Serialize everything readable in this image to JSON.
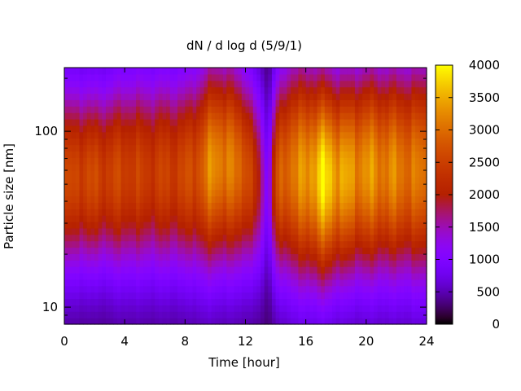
{
  "chart_data": {
    "type": "heatmap",
    "title": "dN / d log d (5/9/1)",
    "xlabel": "Time [hour]",
    "ylabel": "Particle size [nm]",
    "xlim": [
      0,
      24
    ],
    "xticks": [
      0,
      4,
      8,
      12,
      16,
      20,
      24
    ],
    "y_scale": "log",
    "ylim": [
      8,
      230
    ],
    "yticks": [
      10,
      100
    ],
    "colorbar": {
      "range": [
        0,
        4000
      ],
      "ticks": [
        0,
        500,
        1000,
        1500,
        2000,
        2500,
        3000,
        3500,
        4000
      ],
      "palette": "gnuplot default (black-purple-red-orange-yellow)"
    },
    "grid": false,
    "x_hours": [
      0,
      1,
      2,
      3,
      4,
      5,
      6,
      7,
      8,
      9,
      10,
      11,
      12,
      13,
      13.5,
      14,
      15,
      16,
      17,
      18,
      19,
      20,
      21,
      22,
      23,
      24
    ],
    "peak_diameter_nm": [
      55,
      55,
      55,
      56,
      57,
      58,
      58,
      58,
      58,
      60,
      65,
      65,
      60,
      52,
      48,
      55,
      60,
      58,
      55,
      55,
      58,
      60,
      60,
      60,
      60,
      60
    ],
    "peak_value": [
      2200,
      2350,
      2300,
      2250,
      2300,
      2200,
      2200,
      2250,
      2300,
      2550,
      3100,
      2800,
      2650,
      1500,
      700,
      2300,
      2900,
      3000,
      3600,
      3300,
      3050,
      3050,
      2950,
      2900,
      2800,
      2750
    ],
    "log_width": [
      0.38,
      0.38,
      0.37,
      0.38,
      0.4,
      0.4,
      0.4,
      0.4,
      0.4,
      0.42,
      0.42,
      0.42,
      0.4,
      0.38,
      0.35,
      0.4,
      0.45,
      0.45,
      0.43,
      0.42,
      0.42,
      0.43,
      0.43,
      0.43,
      0.44,
      0.45
    ]
  }
}
